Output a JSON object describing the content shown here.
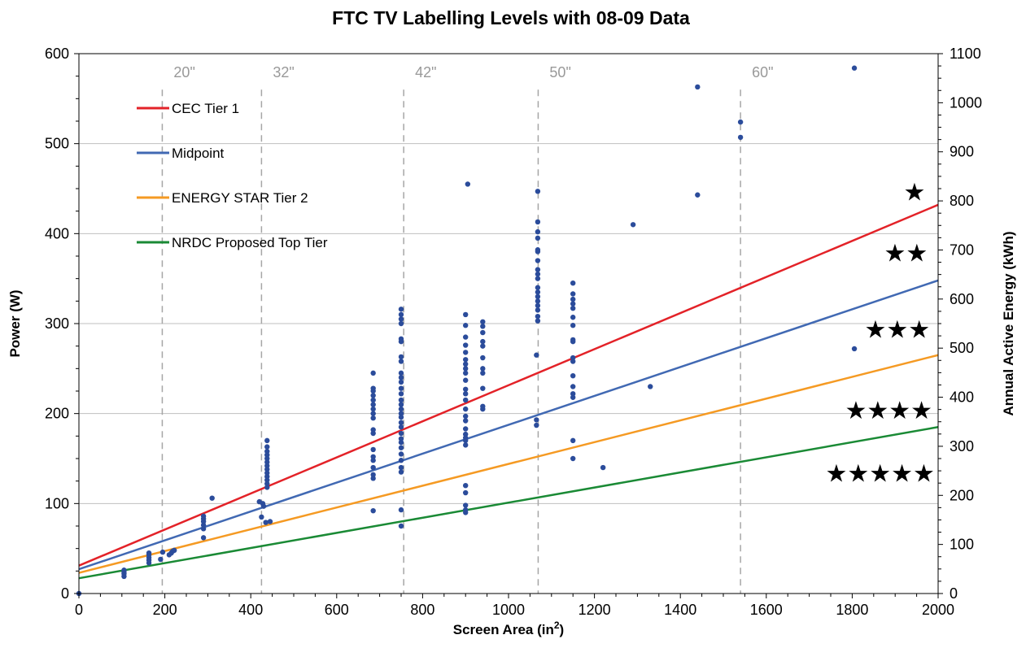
{
  "chart_data": {
    "type": "scatter",
    "title": "FTC TV Labelling Levels with 08-09 Data",
    "xlabel": "Screen Area (in²)",
    "xlabel_base": "Screen Area (in",
    "xlabel_sup": "2",
    "xlabel_tail": ")",
    "ylabel": "Power (W)",
    "y2label": "Annual Active Energy (kWh)",
    "xlim": [
      0,
      2000
    ],
    "ylim": [
      0,
      600
    ],
    "y2lim": [
      0,
      1100
    ],
    "xticks": [
      0,
      200,
      400,
      600,
      800,
      1000,
      1200,
      1400,
      1600,
      1800,
      2000
    ],
    "yticks": [
      0,
      100,
      200,
      300,
      400,
      500,
      600
    ],
    "y2ticks": [
      0,
      100,
      200,
      300,
      400,
      500,
      600,
      700,
      800,
      900,
      1000,
      1100
    ],
    "grid": "horizontal",
    "legend_position": "top-left",
    "lines": [
      {
        "name": "CEC Tier 1",
        "color": "#e32228",
        "x": [
          0,
          2000
        ],
        "y": [
          31,
          432
        ]
      },
      {
        "name": "Midpoint",
        "color": "#4169b3",
        "x": [
          0,
          2000
        ],
        "y": [
          27,
          348
        ]
      },
      {
        "name": "ENERGY STAR Tier 2",
        "color": "#f59a23",
        "x": [
          0,
          2000
        ],
        "y": [
          23,
          265
        ]
      },
      {
        "name": "NRDC Proposed Top Tier",
        "color": "#1a8a35",
        "x": [
          0,
          2000
        ],
        "y": [
          17,
          185
        ]
      }
    ],
    "screen_sizes": [
      {
        "label": "20\"",
        "x": 194,
        "range": [
          0,
          560
        ]
      },
      {
        "label": "32\"",
        "x": 425,
        "range": [
          0,
          560
        ]
      },
      {
        "label": "42\"",
        "x": 756,
        "range": [
          0,
          560
        ]
      },
      {
        "label": "50\"",
        "x": 1069,
        "range": [
          0,
          560
        ]
      },
      {
        "label": "60\"",
        "x": 1540,
        "range": [
          0,
          560
        ]
      }
    ],
    "star_labels": [
      {
        "text": "★",
        "x": 1945,
        "y": 447
      },
      {
        "text": "★★",
        "x": 1925,
        "y": 379
      },
      {
        "text": "★★★",
        "x": 1905,
        "y": 294
      },
      {
        "text": "★★★★",
        "x": 1885,
        "y": 204
      },
      {
        "text": "★★★★★",
        "x": 1865,
        "y": 134
      }
    ],
    "point_color": "#2b4c9b",
    "points": [
      [
        0,
        0
      ],
      [
        105,
        19
      ],
      [
        105,
        22
      ],
      [
        105,
        24
      ],
      [
        105,
        26
      ],
      [
        163,
        34
      ],
      [
        163,
        37
      ],
      [
        163,
        40
      ],
      [
        163,
        43
      ],
      [
        163,
        45
      ],
      [
        190,
        38
      ],
      [
        195,
        46
      ],
      [
        210,
        43
      ],
      [
        215,
        45
      ],
      [
        218,
        47
      ],
      [
        222,
        48
      ],
      [
        290,
        62
      ],
      [
        290,
        72
      ],
      [
        290,
        76
      ],
      [
        290,
        80
      ],
      [
        290,
        83
      ],
      [
        290,
        86
      ],
      [
        310,
        106
      ],
      [
        420,
        102
      ],
      [
        425,
        85
      ],
      [
        428,
        100
      ],
      [
        430,
        97
      ],
      [
        435,
        79
      ],
      [
        438,
        118
      ],
      [
        438,
        122
      ],
      [
        438,
        126
      ],
      [
        438,
        130
      ],
      [
        438,
        134
      ],
      [
        438,
        138
      ],
      [
        438,
        142
      ],
      [
        438,
        146
      ],
      [
        438,
        150
      ],
      [
        438,
        154
      ],
      [
        438,
        158
      ],
      [
        438,
        163
      ],
      [
        438,
        170
      ],
      [
        445,
        80
      ],
      [
        685,
        92
      ],
      [
        685,
        128
      ],
      [
        685,
        132
      ],
      [
        685,
        140
      ],
      [
        685,
        148
      ],
      [
        685,
        152
      ],
      [
        685,
        160
      ],
      [
        685,
        178
      ],
      [
        685,
        182
      ],
      [
        685,
        195
      ],
      [
        685,
        200
      ],
      [
        685,
        205
      ],
      [
        685,
        210
      ],
      [
        685,
        215
      ],
      [
        685,
        220
      ],
      [
        685,
        225
      ],
      [
        685,
        228
      ],
      [
        685,
        245
      ],
      [
        750,
        75
      ],
      [
        750,
        93
      ],
      [
        750,
        135
      ],
      [
        750,
        140
      ],
      [
        750,
        148
      ],
      [
        750,
        155
      ],
      [
        750,
        162
      ],
      [
        750,
        168
      ],
      [
        750,
        172
      ],
      [
        750,
        178
      ],
      [
        750,
        185
      ],
      [
        750,
        190
      ],
      [
        750,
        196
      ],
      [
        750,
        200
      ],
      [
        750,
        205
      ],
      [
        750,
        210
      ],
      [
        750,
        215
      ],
      [
        750,
        222
      ],
      [
        750,
        228
      ],
      [
        750,
        235
      ],
      [
        750,
        240
      ],
      [
        750,
        245
      ],
      [
        750,
        258
      ],
      [
        750,
        263
      ],
      [
        750,
        280
      ],
      [
        750,
        283
      ],
      [
        750,
        300
      ],
      [
        750,
        305
      ],
      [
        750,
        310
      ],
      [
        750,
        316
      ],
      [
        900,
        90
      ],
      [
        900,
        93
      ],
      [
        900,
        98
      ],
      [
        900,
        112
      ],
      [
        900,
        120
      ],
      [
        900,
        165
      ],
      [
        900,
        170
      ],
      [
        900,
        173
      ],
      [
        900,
        177
      ],
      [
        900,
        183
      ],
      [
        900,
        192
      ],
      [
        900,
        197
      ],
      [
        900,
        205
      ],
      [
        900,
        215
      ],
      [
        900,
        222
      ],
      [
        900,
        227
      ],
      [
        900,
        237
      ],
      [
        900,
        245
      ],
      [
        900,
        250
      ],
      [
        900,
        255
      ],
      [
        900,
        260
      ],
      [
        900,
        268
      ],
      [
        900,
        276
      ],
      [
        900,
        285
      ],
      [
        900,
        298
      ],
      [
        900,
        310
      ],
      [
        905,
        455
      ],
      [
        940,
        205
      ],
      [
        940,
        208
      ],
      [
        940,
        228
      ],
      [
        940,
        245
      ],
      [
        940,
        250
      ],
      [
        940,
        262
      ],
      [
        940,
        275
      ],
      [
        940,
        280
      ],
      [
        940,
        290
      ],
      [
        940,
        297
      ],
      [
        940,
        302
      ],
      [
        1065,
        187
      ],
      [
        1065,
        193
      ],
      [
        1065,
        265
      ],
      [
        1068,
        303
      ],
      [
        1068,
        308
      ],
      [
        1068,
        315
      ],
      [
        1068,
        320
      ],
      [
        1068,
        325
      ],
      [
        1068,
        330
      ],
      [
        1068,
        335
      ],
      [
        1068,
        340
      ],
      [
        1068,
        350
      ],
      [
        1068,
        355
      ],
      [
        1068,
        360
      ],
      [
        1068,
        370
      ],
      [
        1068,
        380
      ],
      [
        1068,
        382
      ],
      [
        1068,
        395
      ],
      [
        1068,
        402
      ],
      [
        1068,
        413
      ],
      [
        1068,
        447
      ],
      [
        1150,
        150
      ],
      [
        1150,
        170
      ],
      [
        1150,
        218
      ],
      [
        1150,
        222
      ],
      [
        1150,
        230
      ],
      [
        1150,
        242
      ],
      [
        1150,
        258
      ],
      [
        1150,
        262
      ],
      [
        1150,
        280
      ],
      [
        1150,
        282
      ],
      [
        1150,
        298
      ],
      [
        1150,
        307
      ],
      [
        1150,
        317
      ],
      [
        1150,
        322
      ],
      [
        1150,
        327
      ],
      [
        1150,
        333
      ],
      [
        1150,
        345
      ],
      [
        1220,
        140
      ],
      [
        1290,
        410
      ],
      [
        1330,
        230
      ],
      [
        1440,
        443
      ],
      [
        1440,
        563
      ],
      [
        1540,
        507
      ],
      [
        1540,
        524
      ],
      [
        1805,
        272
      ],
      [
        1805,
        584
      ]
    ]
  }
}
